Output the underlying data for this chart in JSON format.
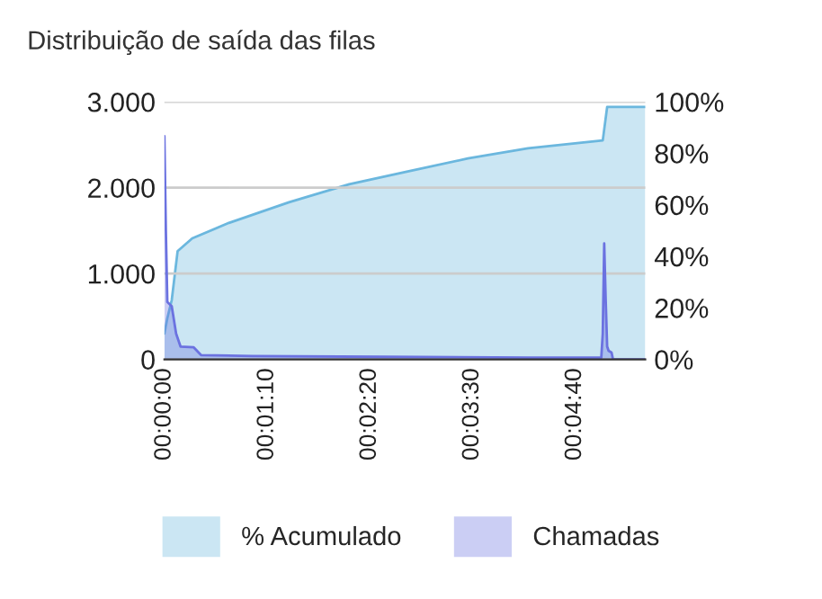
{
  "chart_data": {
    "type": "area",
    "title": "Distribuição de saída das filas",
    "xlim": [
      0,
      328
    ],
    "xticks": [
      {
        "value": 0,
        "label": "00:00:00"
      },
      {
        "value": 70,
        "label": "00:01:10"
      },
      {
        "value": 140,
        "label": "00:02:20"
      },
      {
        "value": 210,
        "label": "00:03:30"
      },
      {
        "value": 280,
        "label": "00:04:40"
      }
    ],
    "ylim": [
      0,
      3000
    ],
    "yticks": [
      {
        "value": 0,
        "label": "0"
      },
      {
        "value": 1000,
        "label": "1.000"
      },
      {
        "value": 2000,
        "label": "2.000"
      },
      {
        "value": 3000,
        "label": "3.000"
      }
    ],
    "y2lim": [
      0,
      100
    ],
    "y2ticks": [
      {
        "value": 0,
        "label": "0%"
      },
      {
        "value": 20,
        "label": "20%"
      },
      {
        "value": 40,
        "label": "40%"
      },
      {
        "value": 60,
        "label": "60%"
      },
      {
        "value": 80,
        "label": "80%"
      },
      {
        "value": 100,
        "label": "100%"
      }
    ],
    "grid": "y",
    "legend": "bottom",
    "series": [
      {
        "name": "% Acumulado",
        "color": "#6bb7de",
        "axis": "y2",
        "x": [
          0,
          2,
          5,
          9,
          19,
          44,
          85,
          126,
          166,
          207,
          248,
          299,
          302,
          328
        ],
        "values": [
          10,
          16,
          23,
          42,
          47,
          53,
          61,
          68,
          73,
          78,
          82,
          85,
          98,
          98
        ]
      },
      {
        "name": "Chamadas",
        "color": "#6b72e0",
        "axis": "y",
        "x": [
          0,
          1,
          2,
          5,
          8,
          11,
          20,
          25,
          60,
          150,
          250,
          298,
          299,
          300,
          301,
          302,
          303,
          305,
          306,
          328
        ],
        "values": [
          2600,
          1500,
          670,
          620,
          300,
          150,
          140,
          50,
          40,
          30,
          20,
          20,
          300,
          1350,
          700,
          150,
          100,
          80,
          0,
          0
        ]
      }
    ]
  }
}
